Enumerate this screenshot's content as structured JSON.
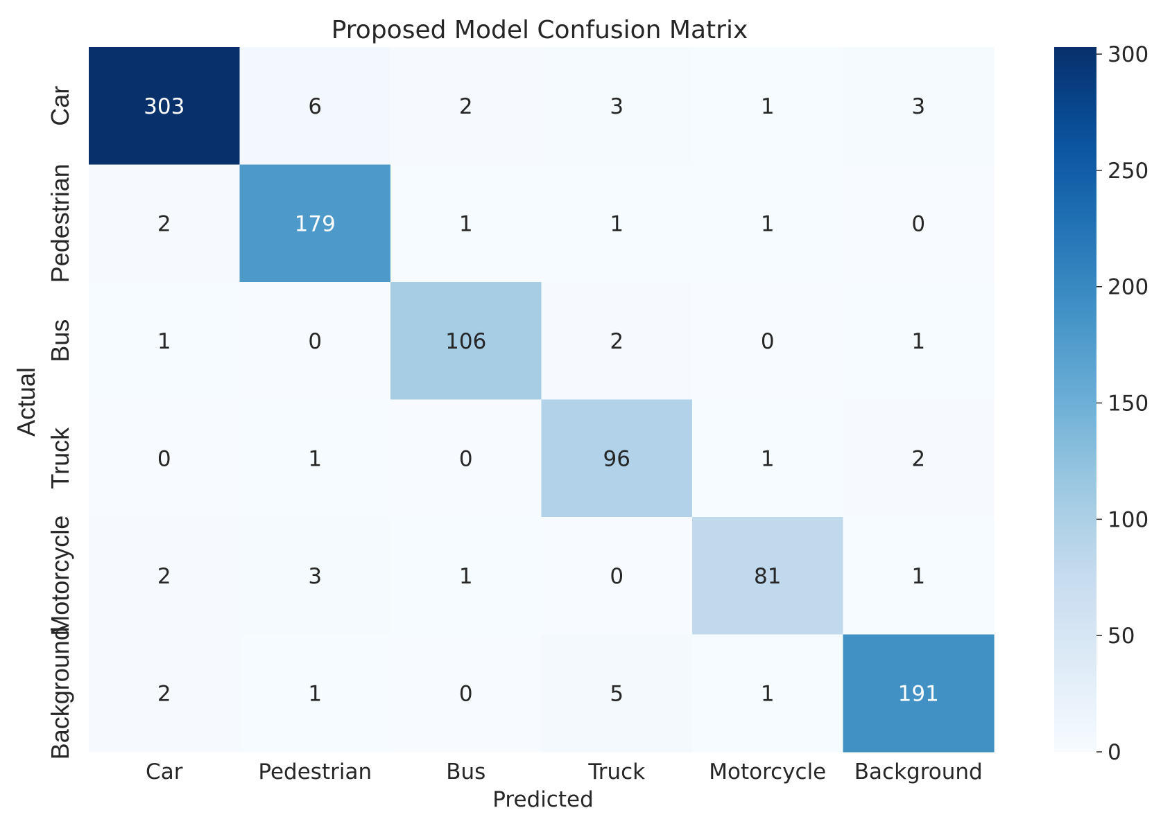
{
  "chart_data": {
    "type": "heatmap",
    "title": "Proposed Model Confusion Matrix",
    "xlabel": "Predicted",
    "ylabel": "Actual",
    "x_categories": [
      "Car",
      "Pedestrian",
      "Bus",
      "Truck",
      "Motorcycle",
      "Background"
    ],
    "y_categories": [
      "Car",
      "Pedestrian",
      "Bus",
      "Truck",
      "Motorcycle",
      "Background"
    ],
    "values": [
      [
        303,
        6,
        2,
        3,
        1,
        3
      ],
      [
        2,
        179,
        1,
        1,
        1,
        0
      ],
      [
        1,
        0,
        106,
        2,
        0,
        1
      ],
      [
        0,
        1,
        0,
        96,
        1,
        2
      ],
      [
        2,
        3,
        1,
        0,
        81,
        1
      ],
      [
        2,
        1,
        0,
        5,
        1,
        191
      ]
    ],
    "colormap": "Blues",
    "vmin": 0,
    "vmax": 303,
    "colorbar_ticks": [
      0,
      50,
      100,
      150,
      200,
      250,
      300
    ],
    "colorbar_tick_labels": [
      "0",
      "50",
      "100",
      "150",
      "200",
      "250",
      "300"
    ],
    "annotations": true
  },
  "colors": {
    "text_dark": "#262626",
    "text_light": "#ffffff"
  }
}
